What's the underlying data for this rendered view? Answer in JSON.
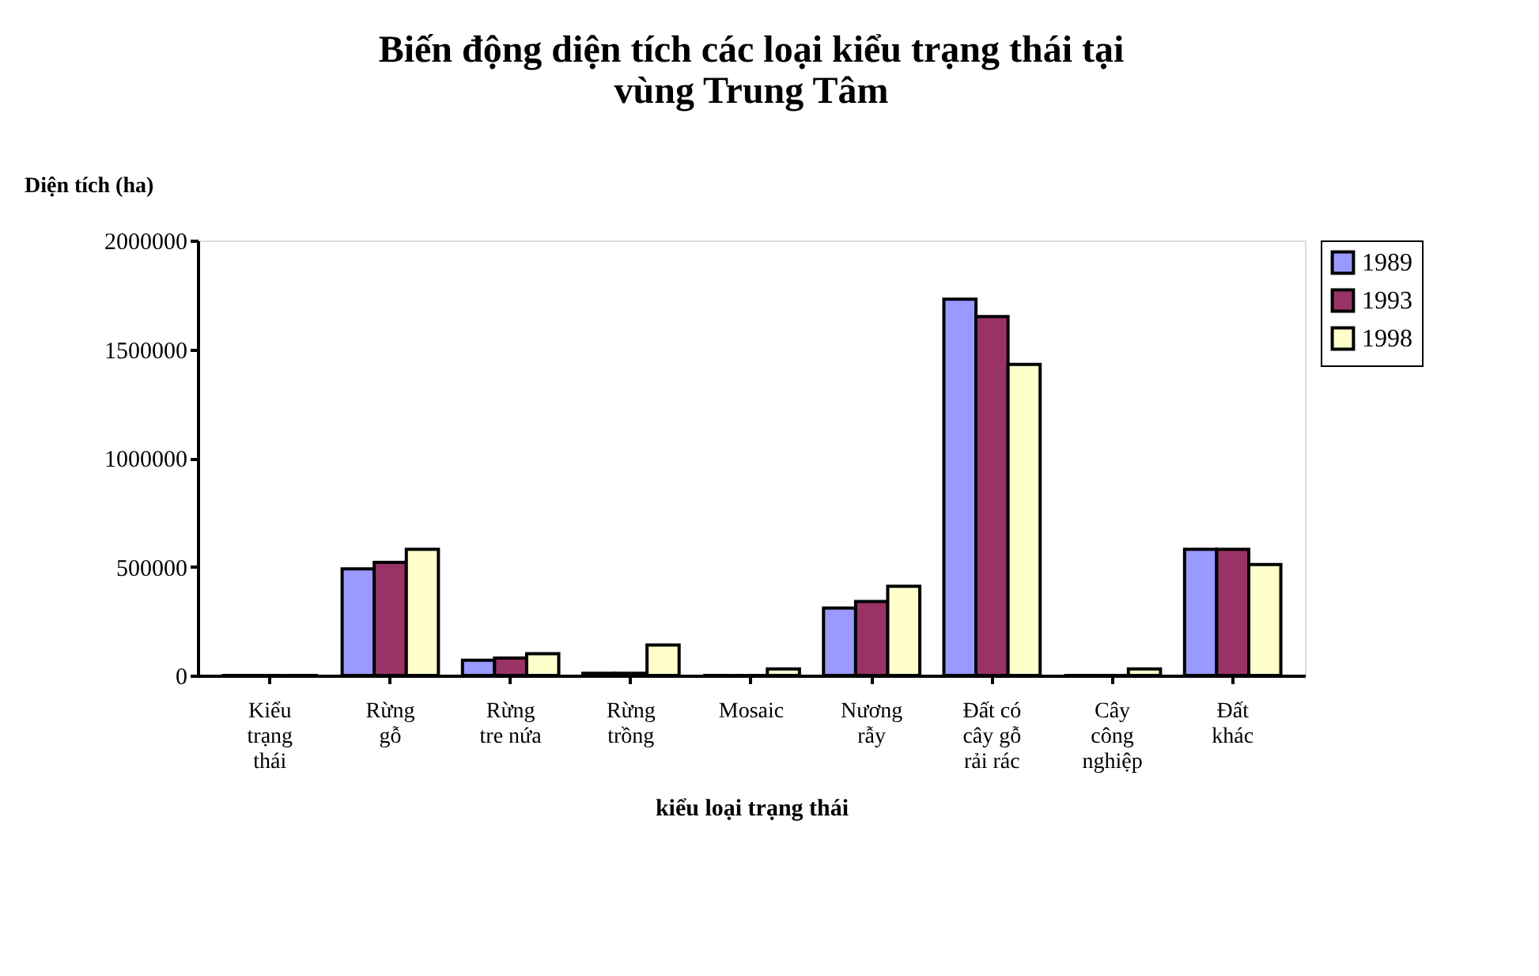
{
  "chart_data": {
    "type": "bar",
    "title": [
      "Biến động diện tích các loại kiểu trạng thái tại",
      "vùng Trung Tâm"
    ],
    "xlabel": "kiểu loại trạng thái",
    "ylabel": "Diện tích (ha)",
    "categories": [
      "Kiểu\ntrạng\nthái",
      "Rừng\ngỗ",
      "Rừng\ntre nứa",
      "Rừng\ntrồng",
      "Mosaic",
      "Nương\nrẫy",
      "Đất có\ncây gỗ\nrải rác",
      "Cây\ncông\nnghiệp",
      "Đất\nkhác"
    ],
    "series": [
      {
        "name": "1989",
        "color": "#9999ff",
        "values": [
          0,
          490000,
          70000,
          10000,
          0,
          310000,
          1730000,
          0,
          580000
        ]
      },
      {
        "name": "1993",
        "color": "#993366",
        "values": [
          0,
          520000,
          80000,
          10000,
          0,
          340000,
          1650000,
          0,
          580000
        ]
      },
      {
        "name": "1998",
        "color": "#ffffcc",
        "values": [
          0,
          580000,
          100000,
          140000,
          30000,
          410000,
          1430000,
          30000,
          510000
        ]
      }
    ],
    "ylim": [
      0,
      2000000
    ],
    "yticks": [
      0,
      500000,
      1000000,
      1500000,
      2000000
    ],
    "grid": false,
    "legend": "right"
  }
}
